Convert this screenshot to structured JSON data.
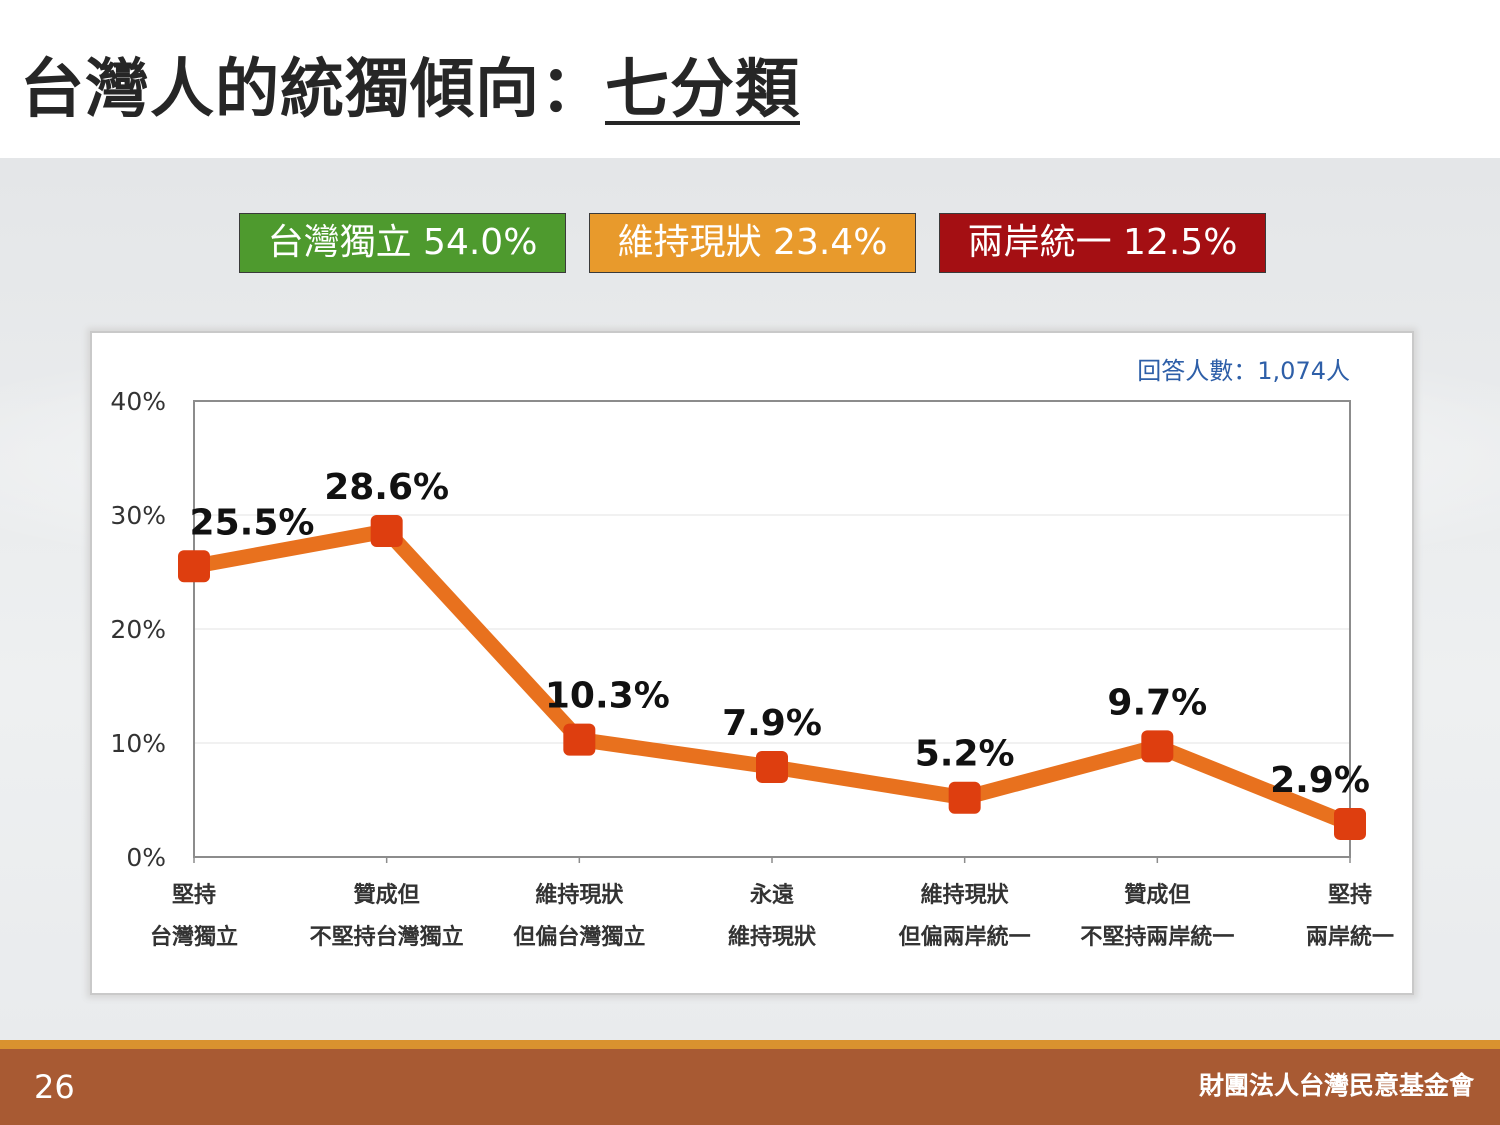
{
  "slide": {
    "title_main": "台灣人的統獨傾向：",
    "title_underlined": "七分類",
    "page_number": "26",
    "organization": "財團法人台灣民意基金會"
  },
  "badges": [
    {
      "label": "台灣獨立 54.0%",
      "color": "#4e9a2e"
    },
    {
      "label": "維持現狀 23.4%",
      "color": "#e89a2c"
    },
    {
      "label": "兩岸統一 12.5%",
      "color": "#a40f13"
    }
  ],
  "chart_data": {
    "type": "line",
    "note": "回答人數：1,074人",
    "categories": [
      [
        "堅持",
        "台灣獨立"
      ],
      [
        "贊成但",
        "不堅持台灣獨立"
      ],
      [
        "維持現狀",
        "但偏台灣獨立"
      ],
      [
        "永遠",
        "維持現狀"
      ],
      [
        "維持現狀",
        "但偏兩岸統一"
      ],
      [
        "贊成但",
        "不堅持兩岸統一"
      ],
      [
        "堅持",
        "兩岸統一"
      ]
    ],
    "values": [
      25.5,
      28.6,
      10.3,
      7.9,
      5.2,
      9.7,
      2.9
    ],
    "data_labels": [
      "25.5%",
      "28.6%",
      "10.3%",
      "7.9%",
      "5.2%",
      "9.7%",
      "2.9%"
    ],
    "ylim": [
      0,
      40
    ],
    "yticks": [
      {
        "value": 0,
        "label": "0%"
      },
      {
        "value": 10,
        "label": "10%"
      },
      {
        "value": 20,
        "label": "20%"
      },
      {
        "value": 30,
        "label": "30%"
      },
      {
        "value": 40,
        "label": "40%"
      }
    ],
    "grid": true,
    "line_color": "#e8711e",
    "marker_color": "#de3e0f"
  }
}
